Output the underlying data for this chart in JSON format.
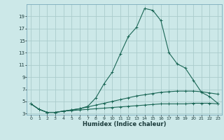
{
  "xlabel": "Humidex (Indice chaleur)",
  "bg_color": "#cce8e8",
  "grid_color": "#aacccc",
  "line_color": "#1a6655",
  "x_values": [
    0,
    1,
    2,
    3,
    4,
    5,
    6,
    7,
    8,
    9,
    10,
    11,
    12,
    13,
    14,
    15,
    16,
    17,
    18,
    19,
    20,
    21,
    22,
    23
  ],
  "series1": [
    4.6,
    3.7,
    3.2,
    3.2,
    3.4,
    3.5,
    3.6,
    3.7,
    3.8,
    3.9,
    4.0,
    4.1,
    4.2,
    4.3,
    4.4,
    4.5,
    4.6,
    4.6,
    4.6,
    4.6,
    4.7,
    4.7,
    4.7,
    4.6
  ],
  "series2": [
    4.6,
    3.7,
    3.2,
    3.2,
    3.4,
    3.6,
    3.8,
    4.1,
    4.4,
    4.7,
    5.0,
    5.3,
    5.6,
    5.9,
    6.1,
    6.3,
    6.5,
    6.6,
    6.7,
    6.7,
    6.7,
    6.6,
    6.4,
    6.2
  ],
  "series3": [
    4.6,
    3.7,
    3.2,
    3.2,
    3.4,
    3.6,
    3.8,
    4.2,
    5.6,
    7.9,
    9.8,
    12.8,
    15.7,
    17.2,
    20.3,
    20.0,
    18.3,
    13.0,
    11.2,
    10.5,
    8.5,
    6.5,
    5.8,
    4.7
  ],
  "ylim": [
    2.8,
    21.0
  ],
  "xlim": [
    -0.5,
    23.5
  ],
  "yticks": [
    3,
    5,
    7,
    9,
    11,
    13,
    15,
    17,
    19
  ],
  "xticks": [
    0,
    1,
    2,
    3,
    4,
    5,
    6,
    7,
    8,
    9,
    10,
    11,
    12,
    13,
    14,
    15,
    16,
    17,
    18,
    19,
    20,
    21,
    22,
    23
  ],
  "title_fontsize": 7,
  "xlabel_fontsize": 6,
  "tick_fontsize": 4.5
}
